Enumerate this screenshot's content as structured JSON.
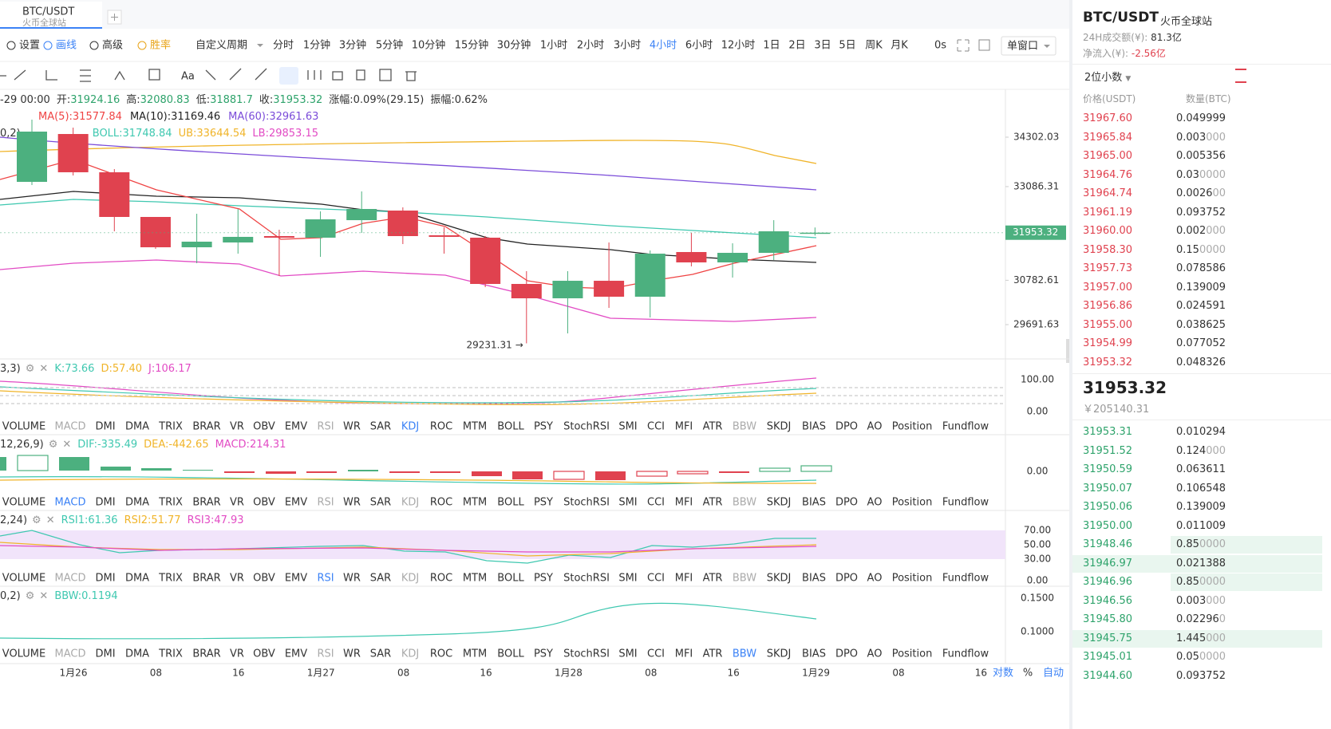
{
  "tab": {
    "symbol": "BTC/USDT",
    "exchange": "火币全球站"
  },
  "toolbar": {
    "tools": [
      "设置",
      "画线",
      "高级",
      "胜率"
    ],
    "custom": "自定义周期",
    "periods": [
      "分时",
      "1分钟",
      "3分钟",
      "5分钟",
      "10分钟",
      "15分钟",
      "30分钟",
      "1小时",
      "2小时",
      "3小时",
      "4小时",
      "6小时",
      "12小时",
      "1日",
      "2日",
      "3日",
      "5日",
      "周K",
      "月K"
    ],
    "active_period": 10,
    "countdown": "0s",
    "window": "单窗口",
    "text_tool": "Aa"
  },
  "chart_data": {
    "type": "candlestick",
    "ylim": [
      28848,
      35420
    ],
    "yticks": [
      34302.03,
      33086.31,
      30782.61,
      29691.63
    ],
    "info": {
      "date": "-29 00:00",
      "open": "开:",
      "high": "高:",
      "low": "低:",
      "close": "收:",
      "change": "涨幅:0.09%(29.15)",
      "amplitude": "振幅:0.62%"
    },
    "ma": [
      "MA(5):31577.84",
      "MA(10):31169.46",
      "MA(60):32961.63"
    ],
    "boll": [
      "0,2)",
      "BOLL:31748.84",
      "UB:33644.54",
      "LB:29853.15"
    ],
    "low_arrow": "→",
    "candles": [
      {
        "open": 33203,
        "high": 34734,
        "low": 33125,
        "close": 34439
      },
      {
        "open": 34380,
        "high": 34537,
        "low": 33360,
        "close": 33439
      },
      {
        "open": 33439,
        "high": 33517,
        "low": 31987,
        "close": 32340
      },
      {
        "open": 32340,
        "high": 32340,
        "low": 31555,
        "close": 31594
      },
      {
        "open": 31594,
        "high": 32418,
        "low": 31202,
        "close": 31732
      },
      {
        "open": 31712,
        "high": 32536,
        "low": 31437,
        "close": 31850
      },
      {
        "open": 31869,
        "high": 32026,
        "low": 30888,
        "close": 31830
      },
      {
        "open": 31830,
        "high": 32477,
        "low": 31359,
        "close": 32281
      },
      {
        "open": 32261,
        "high": 32968,
        "low": 31948,
        "close": 32536
      },
      {
        "open": 32497,
        "high": 32576,
        "low": 31673,
        "close": 31869
      },
      {
        "open": 31889,
        "high": 32085,
        "low": 31437,
        "close": 31850
      },
      {
        "open": 31830,
        "high": 31869,
        "low": 30613,
        "close": 30692
      },
      {
        "open": 30692,
        "high": 31006,
        "low": 29231.31,
        "close": 30339
      },
      {
        "open": 30339,
        "high": 31006,
        "low": 29476,
        "close": 30770
      },
      {
        "open": 30770,
        "high": 31712,
        "low": 30103,
        "close": 30378
      },
      {
        "open": 30378,
        "high": 31516,
        "low": 29868,
        "close": 31437
      },
      {
        "open": 31477,
        "high": 31948,
        "low": 31124,
        "close": 31222
      },
      {
        "open": 31222,
        "high": 31692,
        "low": 30849,
        "close": 31457
      },
      {
        "open": 31457,
        "high": 32261,
        "low": 31280,
        "close": 31987
      },
      {
        "open": 31924.16,
        "high": 32080.83,
        "low": 31881.7,
        "close": 31953.32
      }
    ],
    "up_color": "#4cb07f",
    "down_color": "#e0424f",
    "current_price": 31953.32,
    "time_labels": [
      "1月26",
      "08",
      "16",
      "1月27",
      "08",
      "16",
      "1月28",
      "08",
      "16",
      "1月29",
      "08",
      "16"
    ],
    "axis_modes": [
      "对数",
      "%",
      "自动"
    ]
  },
  "indicators": {
    "tabs": [
      "VOLUME",
      "MACD",
      "DMI",
      "DMA",
      "TRIX",
      "BRAR",
      "VR",
      "OBV",
      "EMV",
      "RSI",
      "WR",
      "SAR",
      "KDJ",
      "ROC",
      "MTM",
      "BOLL",
      "PSY",
      "StochRSI",
      "SMI",
      "CCI",
      "MFI",
      "ATR",
      "BBW",
      "SKDJ",
      "BIAS",
      "DPO",
      "AO",
      "Position",
      "Fundflow"
    ],
    "panes": [
      {
        "active": 12,
        "params": "3,3)",
        "values": [
          "K:73.66",
          "D:57.40",
          "J:106.17"
        ],
        "axis": [
          "100.00",
          "0.00"
        ]
      },
      {
        "active": 1,
        "params": "12,26,9)",
        "values": [
          "DIF:-335.49",
          "DEA:-442.65",
          "MACD:214.31"
        ],
        "axis": [
          "0.00"
        ]
      },
      {
        "active": 9,
        "params": "2,24)",
        "values": [
          "RSI1:61.36",
          "RSI2:51.77",
          "RSI3:47.93"
        ],
        "axis": [
          "70.00",
          "50.00",
          "30.00",
          "0.00"
        ]
      },
      {
        "active": 22,
        "params": "0,2)",
        "values": [
          "BBW:0.1194"
        ],
        "axis": [
          "0.1500",
          "0.1000"
        ]
      }
    ],
    "muted": [
      1,
      9,
      12,
      22
    ]
  },
  "orderbook": {
    "title": "BTC/USDT",
    "exchange": "火币全球站",
    "volume_label": "24H成交额(¥):",
    "volume": "81.3亿",
    "inflow_label": "净流入(¥):",
    "inflow": "-2.56亿",
    "precision": "2位小数",
    "headers": [
      "价格(USDT)",
      "数量(BTC)"
    ],
    "asks": [
      [
        "31967.60",
        "0.049999"
      ],
      [
        "31965.84",
        "0.003000"
      ],
      [
        "31965.00",
        "0.005356"
      ],
      [
        "31964.76",
        "0.030000"
      ],
      [
        "31964.74",
        "0.002600"
      ],
      [
        "31961.19",
        "0.093752"
      ],
      [
        "31960.00",
        "0.002000"
      ],
      [
        "31958.30",
        "0.150000"
      ],
      [
        "31957.73",
        "0.078586"
      ],
      [
        "31957.00",
        "0.139009"
      ],
      [
        "31956.86",
        "0.024591"
      ],
      [
        "31955.00",
        "0.038625"
      ],
      [
        "31954.99",
        "0.077052"
      ],
      [
        "31953.32",
        "0.048326"
      ]
    ],
    "last": "31953.32",
    "last_cny": "￥205140.31",
    "bids": [
      [
        "31953.31",
        "0.010294"
      ],
      [
        "31951.52",
        "0.124000"
      ],
      [
        "31950.59",
        "0.063611"
      ],
      [
        "31950.07",
        "0.106548"
      ],
      [
        "31950.06",
        "0.139009"
      ],
      [
        "31950.00",
        "0.011009"
      ],
      [
        "31948.46",
        "0.850000"
      ],
      [
        "31946.97",
        "0.021388"
      ],
      [
        "31946.96",
        "0.850000"
      ],
      [
        "31946.56",
        "0.003000"
      ],
      [
        "31945.80",
        "0.022960"
      ],
      [
        "31945.75",
        "1.445000"
      ],
      [
        "31945.01",
        "0.050000"
      ],
      [
        "31944.60",
        "0.093752"
      ]
    ]
  }
}
